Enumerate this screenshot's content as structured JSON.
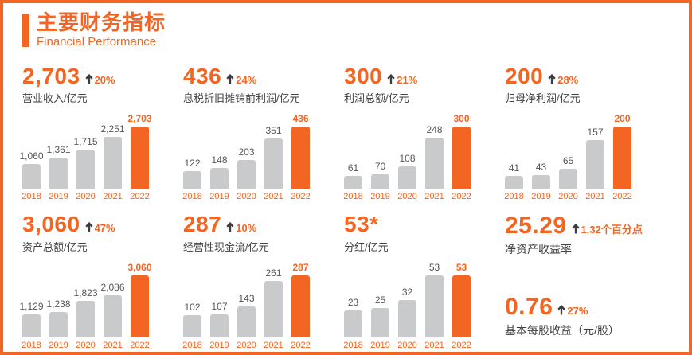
{
  "page": {
    "title": "主要财务指标",
    "subtitle": "Financial Performance"
  },
  "colors": {
    "accent": "#f26522",
    "bar_gray": "#c9cacb",
    "text_dark": "#414042",
    "value_gray": "#565658"
  },
  "chart_data": [
    {
      "id": "revenue",
      "type": "bar",
      "headline": "2,703",
      "delta": "20%",
      "label": "营业收入/亿元",
      "categories": [
        "2018",
        "2019",
        "2020",
        "2021",
        "2022"
      ],
      "values": [
        1060,
        1361,
        1715,
        2251,
        2703
      ],
      "value_labels": [
        "1,060",
        "1,361",
        "1,715",
        "2,251",
        "2,703"
      ],
      "highlight_index": 4
    },
    {
      "id": "ebitda",
      "type": "bar",
      "headline": "436",
      "delta": "24%",
      "label": "息税折旧摊销前利润/亿元",
      "categories": [
        "2018",
        "2019",
        "2020",
        "2021",
        "2022"
      ],
      "values": [
        122,
        148,
        203,
        351,
        436
      ],
      "value_labels": [
        "122",
        "148",
        "203",
        "351",
        "436"
      ],
      "highlight_index": 4
    },
    {
      "id": "total-profit",
      "type": "bar",
      "headline": "300",
      "delta": "21%",
      "label": "利润总额/亿元",
      "categories": [
        "2018",
        "2019",
        "2020",
        "2021",
        "2022"
      ],
      "values": [
        61,
        70,
        108,
        248,
        300
      ],
      "value_labels": [
        "61",
        "70",
        "108",
        "248",
        "300"
      ],
      "highlight_index": 4
    },
    {
      "id": "net-profit",
      "type": "bar",
      "headline": "200",
      "delta": "28%",
      "label": "归母净利润/亿元",
      "categories": [
        "2018",
        "2019",
        "2020",
        "2021",
        "2022"
      ],
      "values": [
        41,
        43,
        65,
        157,
        200
      ],
      "value_labels": [
        "41",
        "43",
        "65",
        "157",
        "200"
      ],
      "highlight_index": 4
    },
    {
      "id": "total-assets",
      "type": "bar",
      "headline": "3,060",
      "delta": "47%",
      "label": "资产总额/亿元",
      "categories": [
        "2018",
        "2019",
        "2020",
        "2021",
        "2022"
      ],
      "values": [
        1129,
        1238,
        1823,
        2086,
        3060
      ],
      "value_labels": [
        "1,129",
        "1,238",
        "1,823",
        "2,086",
        "3,060"
      ],
      "highlight_index": 4
    },
    {
      "id": "operating-cash-flow",
      "type": "bar",
      "headline": "287",
      "delta": "10%",
      "label": "经营性现金流/亿元",
      "categories": [
        "2018",
        "2019",
        "2020",
        "2021",
        "2022"
      ],
      "values": [
        102,
        107,
        143,
        261,
        287
      ],
      "value_labels": [
        "102",
        "107",
        "143",
        "261",
        "287"
      ],
      "highlight_index": 4
    },
    {
      "id": "dividends",
      "type": "bar",
      "headline": "53*",
      "delta": null,
      "label": "分红/亿元",
      "categories": [
        "2018",
        "2019",
        "2020",
        "2021",
        "2022"
      ],
      "values": [
        23,
        25,
        32,
        53,
        53
      ],
      "value_labels": [
        "23",
        "25",
        "32",
        "53",
        "53"
      ],
      "highlight_index": 4
    }
  ],
  "metrics": [
    {
      "value": "25.29",
      "delta": "1.32个百分点",
      "label": "净资产收益率"
    },
    {
      "value": "0.76",
      "delta": "27%",
      "label": "基本每股收益（元/股）"
    }
  ]
}
